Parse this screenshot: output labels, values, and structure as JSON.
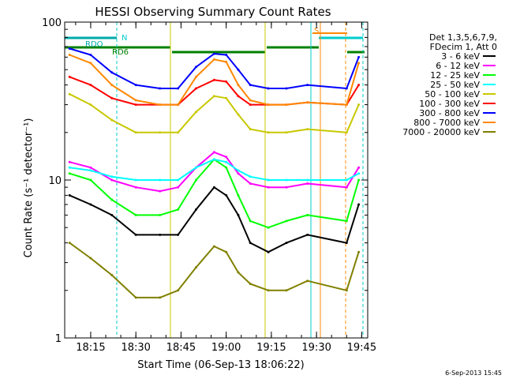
{
  "chart_data": {
    "type": "line",
    "title": "HESSI Observing Summary Count Rates",
    "xlabel": "Start Time (06-Sep-13 18:06:22)",
    "ylabel": "Count Rate (s⁻¹ detector⁻¹)",
    "xlim": [
      "18:06:22",
      "19:47:00"
    ],
    "ylim": [
      1,
      100
    ],
    "yscale": "log",
    "x_ticks": [
      "18:15",
      "18:30",
      "18:45",
      "19:00",
      "19:15",
      "19:30",
      "19:45"
    ],
    "y_ticks": [
      "1",
      "10",
      "100"
    ],
    "legend": {
      "placement": "right",
      "header": [
        "Det 1,3,5,6,7,9,",
        "FDecim 1, Att 0"
      ],
      "entries": [
        {
          "label": "3 - 6 keV",
          "color": "#000000"
        },
        {
          "label": "6 - 12 keV",
          "color": "#ff00ff"
        },
        {
          "label": "12 - 25 keV",
          "color": "#00ff00"
        },
        {
          "label": "25 - 50 keV",
          "color": "#00ffff"
        },
        {
          "label": "50 - 100 keV",
          "color": "#c8c800"
        },
        {
          "label": "100 - 300 keV",
          "color": "#ff0000"
        },
        {
          "label": "300 - 800 keV",
          "color": "#0000ff"
        },
        {
          "label": "800 - 7000 keV",
          "color": "#ff8800"
        },
        {
          "label": "7000 - 20000 keV",
          "color": "#808000"
        }
      ]
    },
    "flags": [
      {
        "label": "RDO",
        "color": "#00aaaa"
      },
      {
        "label": "N",
        "color": "#00cccc"
      },
      {
        "label": "RD6",
        "color": "#008000"
      },
      {
        "label": "S",
        "color": "#ff8800"
      }
    ],
    "series": [
      {
        "name": "3 - 6 keV",
        "color": "#000000",
        "x": [
          "18:08",
          "18:15",
          "18:22",
          "18:30",
          "18:38",
          "18:44",
          "18:50",
          "18:56",
          "19:00",
          "19:04",
          "19:08",
          "19:14",
          "19:20",
          "19:27",
          "19:40",
          "19:44"
        ],
        "y": [
          8,
          7,
          6,
          4.5,
          4.5,
          4.5,
          6.5,
          9,
          8,
          6,
          4,
          3.5,
          4,
          4.5,
          4,
          7
        ]
      },
      {
        "name": "6 - 12 keV",
        "color": "#ff00ff",
        "x": [
          "18:08",
          "18:15",
          "18:22",
          "18:30",
          "18:38",
          "18:44",
          "18:50",
          "18:56",
          "19:00",
          "19:04",
          "19:08",
          "19:14",
          "19:20",
          "19:27",
          "19:40",
          "19:44"
        ],
        "y": [
          13,
          12,
          10,
          9,
          8.5,
          9,
          12,
          15,
          14,
          11,
          9.5,
          9,
          9,
          9.5,
          9,
          12
        ]
      },
      {
        "name": "12 - 25 keV",
        "color": "#00ff00",
        "x": [
          "18:08",
          "18:15",
          "18:22",
          "18:30",
          "18:38",
          "18:44",
          "18:50",
          "18:56",
          "19:00",
          "19:04",
          "19:08",
          "19:14",
          "19:20",
          "19:27",
          "19:40",
          "19:44"
        ],
        "y": [
          11,
          10,
          7.5,
          6,
          6,
          6.5,
          10,
          13.5,
          12,
          8,
          5.5,
          5,
          5.5,
          6,
          5.5,
          10
        ]
      },
      {
        "name": "25 - 50 keV",
        "color": "#00ffff",
        "x": [
          "18:08",
          "18:15",
          "18:22",
          "18:30",
          "18:38",
          "18:44",
          "18:50",
          "18:56",
          "19:00",
          "19:04",
          "19:08",
          "19:14",
          "19:20",
          "19:27",
          "19:40",
          "19:44"
        ],
        "y": [
          12,
          11.5,
          10.5,
          10,
          10,
          10,
          12,
          13.5,
          13,
          11.5,
          10.5,
          10,
          10,
          10,
          10,
          11
        ]
      },
      {
        "name": "50 - 100 keV",
        "color": "#c8c800",
        "x": [
          "18:08",
          "18:15",
          "18:22",
          "18:30",
          "18:38",
          "18:44",
          "18:50",
          "18:56",
          "19:00",
          "19:04",
          "19:08",
          "19:14",
          "19:20",
          "19:27",
          "19:40",
          "19:44"
        ],
        "y": [
          35,
          30,
          24,
          20,
          20,
          20,
          27,
          34,
          33,
          26,
          21,
          20,
          20,
          21,
          20,
          30
        ]
      },
      {
        "name": "100 - 300 keV",
        "color": "#ff0000",
        "x": [
          "18:08",
          "18:15",
          "18:22",
          "18:30",
          "18:38",
          "18:44",
          "18:50",
          "18:56",
          "19:00",
          "19:04",
          "19:08",
          "19:14",
          "19:20",
          "19:27",
          "19:40",
          "19:44"
        ],
        "y": [
          45,
          40,
          33,
          30,
          30,
          30,
          38,
          43,
          42,
          34,
          30,
          30,
          30,
          31,
          30,
          40
        ]
      },
      {
        "name": "300 - 800 keV",
        "color": "#0000ff",
        "x": [
          "18:08",
          "18:15",
          "18:22",
          "18:30",
          "18:38",
          "18:44",
          "18:50",
          "18:56",
          "19:00",
          "19:04",
          "19:08",
          "19:14",
          "19:20",
          "19:27",
          "19:40",
          "19:44"
        ],
        "y": [
          68,
          62,
          48,
          40,
          38,
          38,
          52,
          63,
          62,
          50,
          40,
          38,
          38,
          40,
          38,
          60
        ]
      },
      {
        "name": "800 - 7000 keV",
        "color": "#ff8800",
        "x": [
          "18:08",
          "18:15",
          "18:22",
          "18:30",
          "18:38",
          "18:44",
          "18:50",
          "18:56",
          "19:00",
          "19:04",
          "19:08",
          "19:14",
          "19:20",
          "19:27",
          "19:40",
          "19:44"
        ],
        "y": [
          62,
          55,
          40,
          32,
          30,
          30,
          45,
          58,
          56,
          40,
          32,
          30,
          30,
          31,
          30,
          55
        ]
      },
      {
        "name": "7000 - 20000 keV",
        "color": "#808000",
        "x": [
          "18:08",
          "18:15",
          "18:22",
          "18:30",
          "18:38",
          "18:44",
          "18:50",
          "18:56",
          "19:00",
          "19:04",
          "19:08",
          "19:14",
          "19:20",
          "19:27",
          "19:40",
          "19:44"
        ],
        "y": [
          4,
          3.2,
          2.5,
          1.8,
          1.8,
          2,
          2.8,
          3.8,
          3.5,
          2.6,
          2.2,
          2,
          2,
          2.3,
          2,
          3.5
        ]
      }
    ]
  },
  "footer": {
    "date_stamp": "6-Sep-2013 15:45"
  }
}
